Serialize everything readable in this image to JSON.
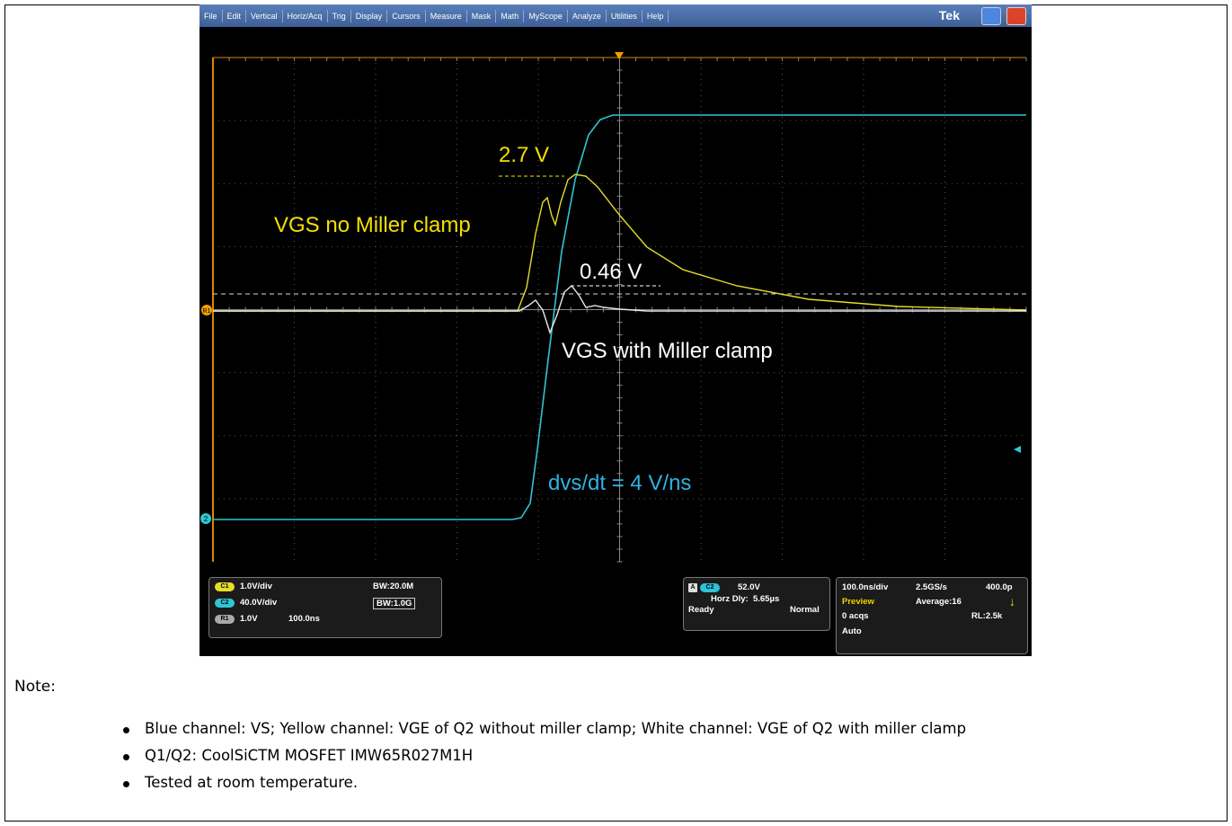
{
  "scope": {
    "menu": [
      "File",
      "Edit",
      "Vertical",
      "Horiz/Acq",
      "Trig",
      "Display",
      "Cursors",
      "Measure",
      "Mask",
      "Math",
      "MyScope",
      "Analyze",
      "Utilities",
      "Help"
    ],
    "brand": "Tek",
    "markers": {
      "ref": "R1",
      "channel2": "2"
    },
    "annotations": {
      "peak_no_clamp": "2.7 V",
      "label_no_clamp": "VGS no Miller clamp",
      "peak_clamp": "0.46 V",
      "label_clamp": "VGS with Miller clamp",
      "dvdt": "dvs/dt = 4 V/ns"
    },
    "channels": [
      {
        "badge": "C1",
        "scale": "1.0V/div",
        "extra": "BW:20.0M"
      },
      {
        "badge": "C2",
        "scale": "40.0V/div",
        "extra": "BW:1.0G"
      },
      {
        "badge": "R1",
        "scale": "1.0V",
        "extra": "100.0ns"
      }
    ],
    "trigger": {
      "badge_a": "A",
      "badge_c": "C2",
      "level": "52.0V",
      "horz_dly": "Horz Dly:  5.65µs",
      "state": "Ready",
      "mode": "Normal"
    },
    "acquisition": {
      "timebase": "100.0ns/div",
      "rate": "2.5GS/s",
      "resolution": "400.0p",
      "preview": "Preview",
      "average": "Average:16",
      "acqs": "0 acqs",
      "record": "RL:2.5k",
      "auto": "Auto"
    }
  },
  "note": {
    "title": "Note:",
    "items": [
      "Blue channel: VS; Yellow channel: VGE of Q2 without miller clamp; White channel: VGE of Q2 with miller clamp",
      "Q1/Q2: CoolSiCTM MOSFET IMW65R027M1H",
      "Tested at room temperature."
    ]
  }
}
